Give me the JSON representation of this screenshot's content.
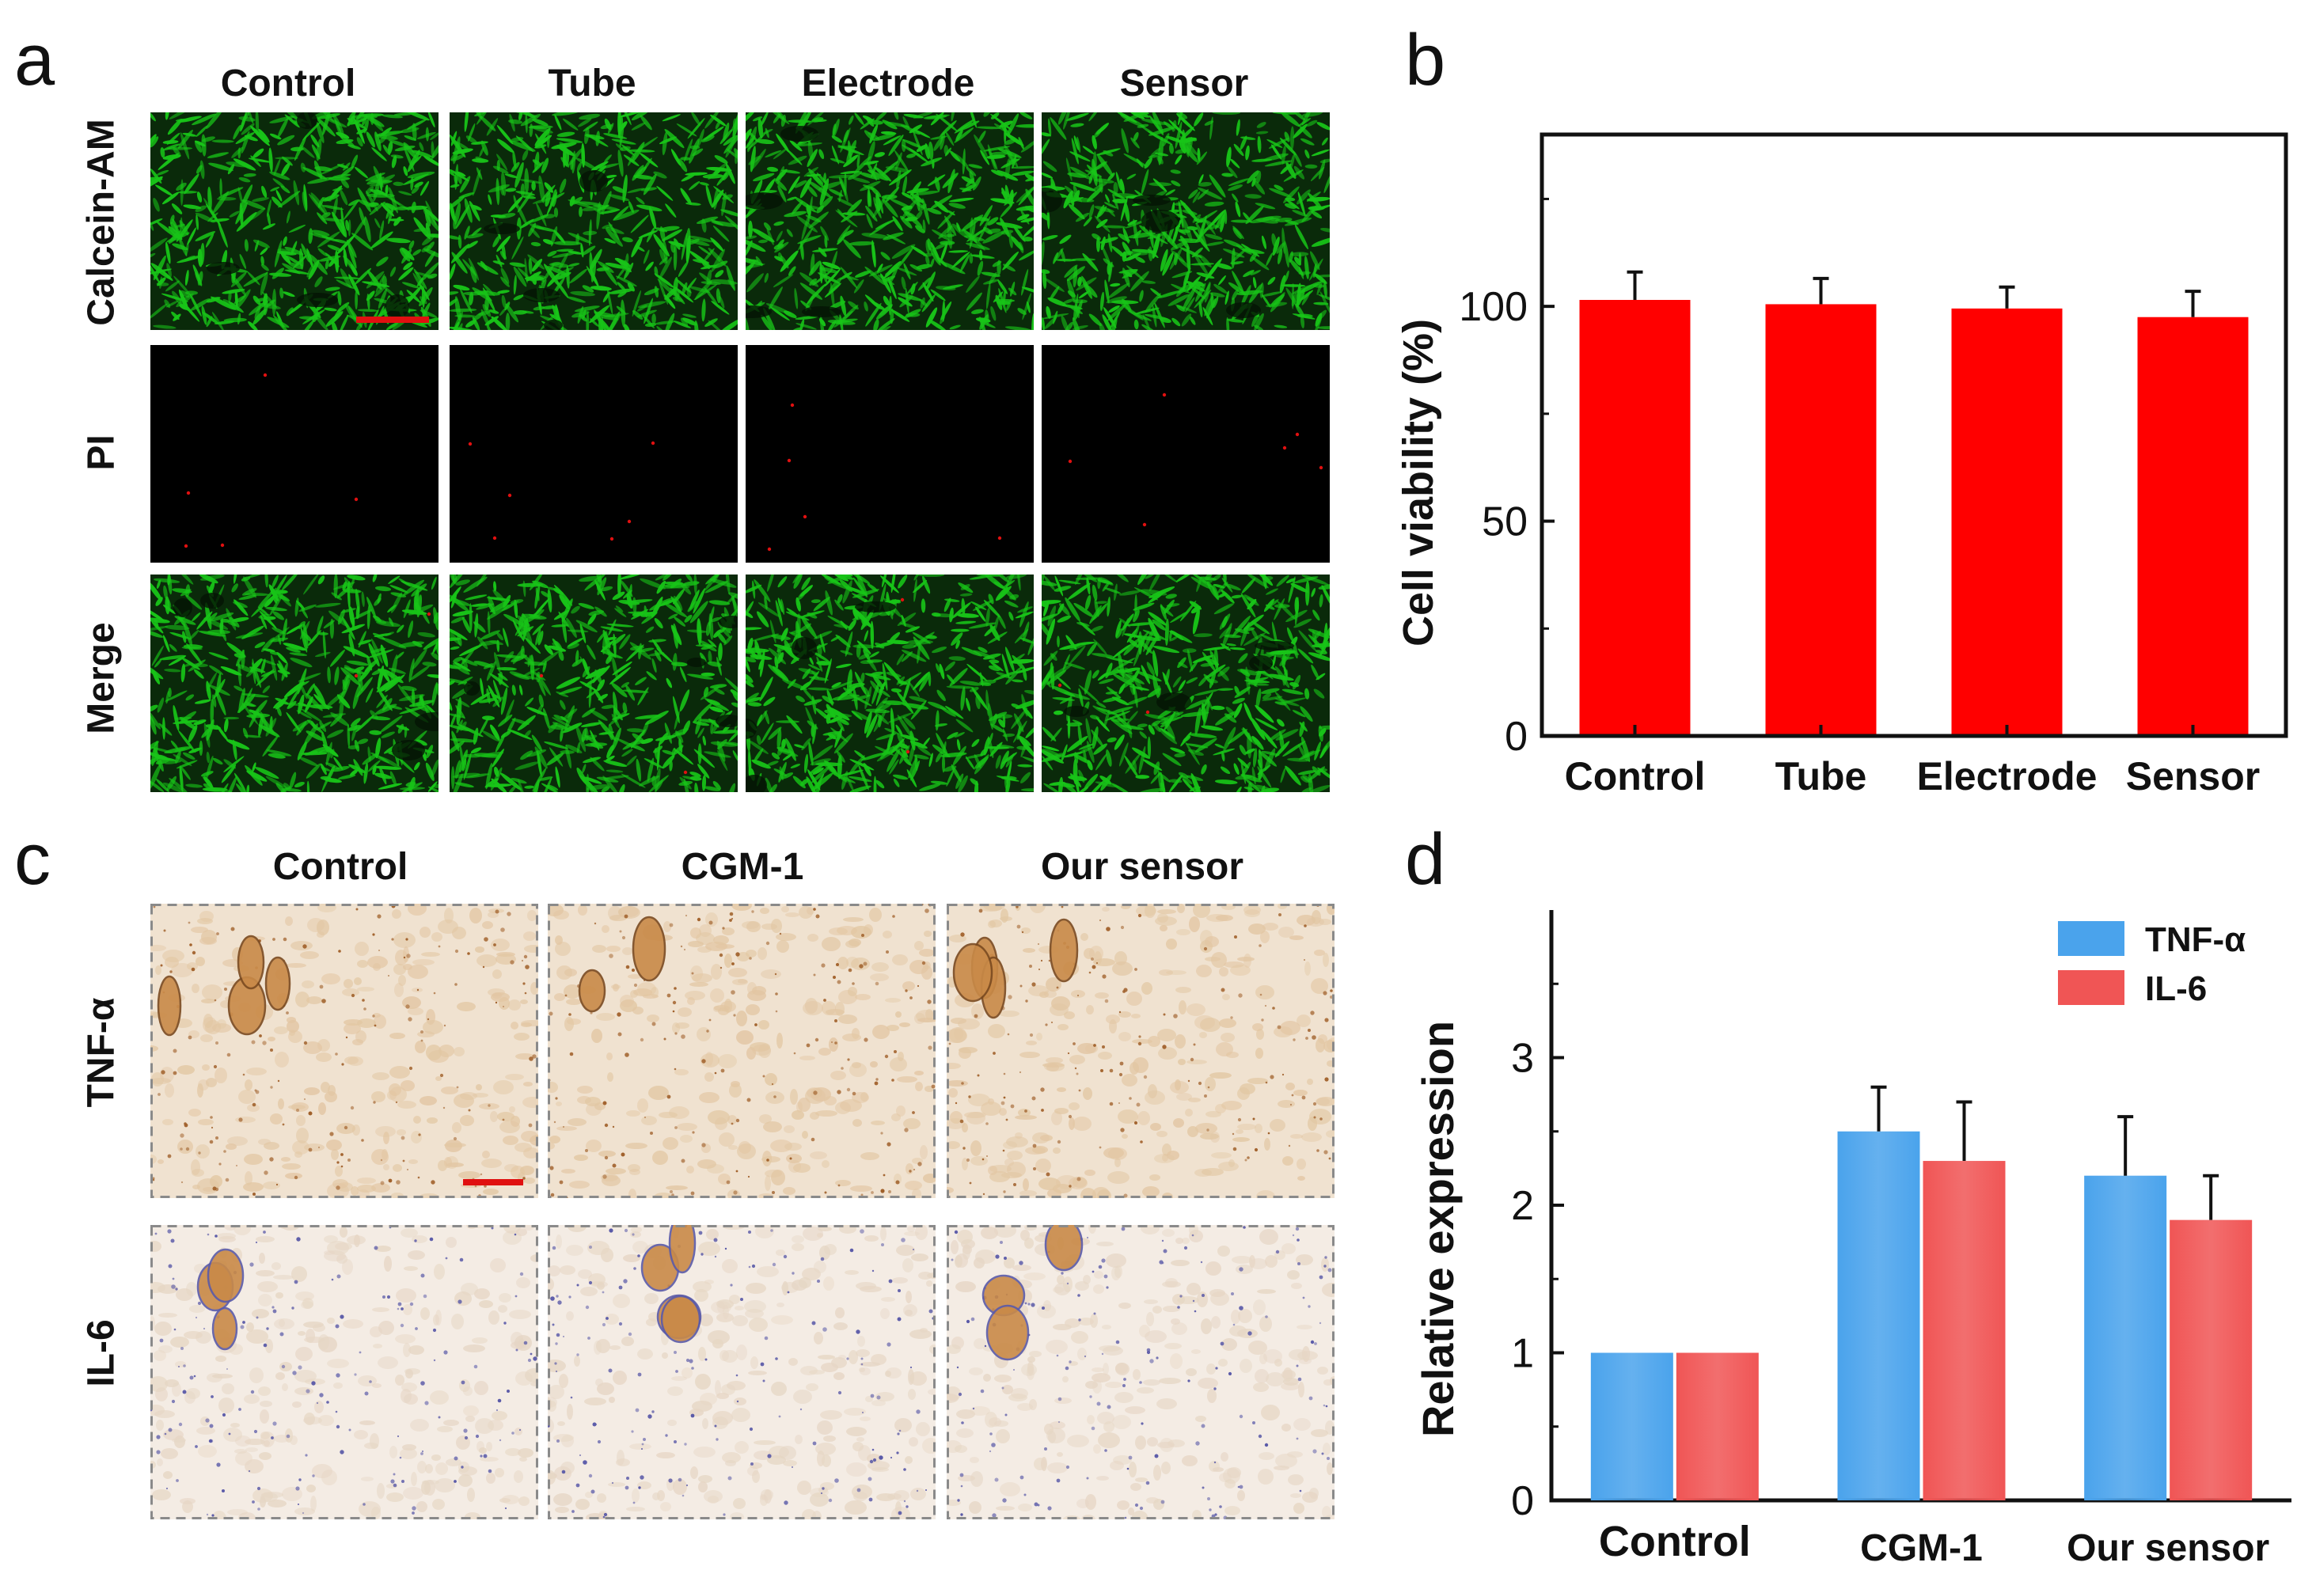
{
  "panels": {
    "a": {
      "letter": "a",
      "columns": [
        "Control",
        "Tube",
        "Electrode",
        "Sensor"
      ],
      "rows": [
        "Calcein-AM",
        "PI",
        "Merge"
      ]
    },
    "b": {
      "letter": "b"
    },
    "c": {
      "letter": "c",
      "columns": [
        "Control",
        "CGM-1",
        "Our sensor"
      ],
      "rows": [
        "TNF-α",
        "IL-6"
      ]
    },
    "d": {
      "letter": "d"
    }
  },
  "colors": {
    "calcein_green": "#18c418",
    "pi_red": "#e01010",
    "bar_red": "#ff0000",
    "tnf_blue": "#4aa3ec",
    "il6_red": "#f05555",
    "tissue_bg": "#f2e6d8",
    "stain_brown": "#a0602a",
    "nuclei_blue": "#5a5aa8",
    "scale_bar": "#e01010"
  },
  "chart_data": [
    {
      "type": "bar",
      "panel": "b",
      "categories": [
        "Control",
        "Tube",
        "Electrode",
        "Sensor"
      ],
      "values": [
        101.5,
        100.5,
        99.5,
        97.5
      ],
      "errors": [
        6.5,
        6,
        5,
        6
      ],
      "title": "",
      "xlabel": "",
      "ylabel": "Cell viability (%)",
      "ylim": [
        0,
        140
      ],
      "yticks": [
        0,
        50,
        100
      ],
      "grid": false,
      "color": "#ff0000"
    },
    {
      "type": "bar",
      "panel": "d",
      "categories": [
        "Control",
        "CGM-1",
        "Our sensor"
      ],
      "series": [
        {
          "name": "TNF-α",
          "values": [
            1.0,
            2.5,
            2.2
          ],
          "errors": [
            0,
            0.3,
            0.4
          ],
          "color": "#4aa3ec"
        },
        {
          "name": "IL-6",
          "values": [
            1.0,
            2.3,
            1.9
          ],
          "errors": [
            0,
            0.4,
            0.3
          ],
          "color": "#f05555"
        }
      ],
      "title": "",
      "xlabel": "",
      "ylabel": "Relative expression",
      "ylim": [
        0,
        4
      ],
      "yticks": [
        0,
        1,
        2,
        3
      ],
      "grid": false,
      "legend_position": "top-right"
    }
  ]
}
